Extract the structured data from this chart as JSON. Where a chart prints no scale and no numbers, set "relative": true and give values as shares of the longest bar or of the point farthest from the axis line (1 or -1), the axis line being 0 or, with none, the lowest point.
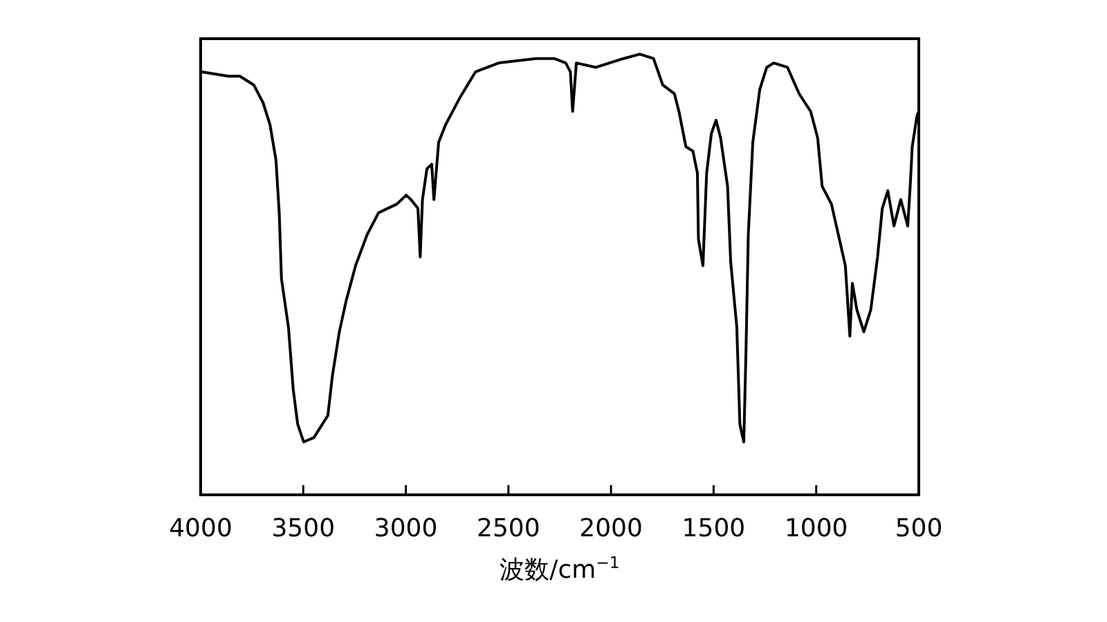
{
  "chart_data": {
    "type": "line",
    "xlabel": "波数/cm$^{−1}$",
    "relative": true,
    "xlim": [
      4000,
      500
    ],
    "xticks": [
      4000,
      3500,
      3000,
      2500,
      2000,
      1500,
      1000,
      500
    ],
    "x": [
      4000,
      3865,
      3809,
      3741,
      3696,
      3662,
      3633,
      3617,
      3606,
      3572,
      3549,
      3527,
      3498,
      3448,
      3380,
      3358,
      3324,
      3291,
      3245,
      3189,
      3133,
      3043,
      2998,
      2975,
      2941,
      2930,
      2919,
      2897,
      2874,
      2863,
      2840,
      2806,
      2738,
      2660,
      2547,
      2367,
      2277,
      2221,
      2198,
      2187,
      2169,
      2074,
      1939,
      1860,
      1793,
      1748,
      1691,
      1669,
      1635,
      1601,
      1579,
      1574,
      1552,
      1534,
      1511,
      1488,
      1466,
      1432,
      1417,
      1387,
      1372,
      1353,
      1342,
      1331,
      1309,
      1275,
      1241,
      1207,
      1140,
      1083,
      1027,
      993,
      971,
      926,
      892,
      858,
      836,
      824,
      802,
      768,
      734,
      701,
      678,
      651,
      621,
      588,
      554,
      542,
      532,
      509,
      500
    ],
    "series": [
      {
        "color": "#000000",
        "values": [
          0.96,
          0.95,
          0.95,
          0.93,
          0.89,
          0.84,
          0.76,
          0.64,
          0.49,
          0.38,
          0.24,
          0.16,
          0.12,
          0.13,
          0.18,
          0.27,
          0.37,
          0.44,
          0.52,
          0.59,
          0.64,
          0.66,
          0.68,
          0.67,
          0.65,
          0.54,
          0.67,
          0.74,
          0.75,
          0.67,
          0.8,
          0.84,
          0.9,
          0.96,
          0.98,
          0.99,
          0.99,
          0.98,
          0.96,
          0.87,
          0.98,
          0.97,
          0.99,
          1.0,
          0.99,
          0.93,
          0.91,
          0.87,
          0.79,
          0.78,
          0.73,
          0.58,
          0.52,
          0.73,
          0.82,
          0.85,
          0.81,
          0.7,
          0.53,
          0.38,
          0.16,
          0.12,
          0.33,
          0.59,
          0.8,
          0.92,
          0.97,
          0.98,
          0.97,
          0.91,
          0.87,
          0.81,
          0.7,
          0.66,
          0.59,
          0.52,
          0.36,
          0.48,
          0.42,
          0.37,
          0.42,
          0.54,
          0.65,
          0.69,
          0.61,
          0.67,
          0.61,
          0.7,
          0.79,
          0.86,
          0.87
        ]
      }
    ]
  }
}
